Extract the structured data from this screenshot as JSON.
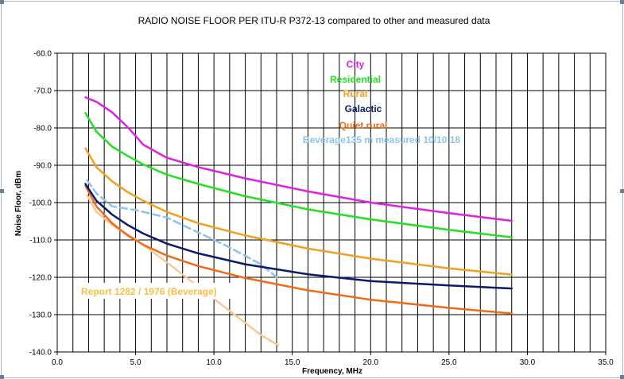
{
  "chart_data": {
    "type": "line",
    "title": "RADIO NOISE FLOOR PER ITU-R P372-13 compared to other and measured data",
    "xlabel": "Frequency, MHz",
    "ylabel": "Noise Floor, dBm",
    "xlim": [
      0,
      35
    ],
    "ylim": [
      -140,
      -60
    ],
    "x_ticks": [
      "0.0",
      "5.0",
      "10.0",
      "15.0",
      "20.0",
      "25.0",
      "30.0",
      "35.0"
    ],
    "y_ticks": [
      "-60.0",
      "-70.0",
      "-80.0",
      "-90.0",
      "-100.0",
      "-110.0",
      "-120.0",
      "-130.0",
      "-140.0"
    ],
    "grid": {
      "vertical_every": 1,
      "horizontal_every": 10
    },
    "series": [
      {
        "name": "City",
        "color": "#e020e0",
        "dash": false,
        "x": [
          1.8,
          2.5,
          3.5,
          4.5,
          5.5,
          7,
          9,
          12,
          16,
          20,
          25,
          29
        ],
        "y": [
          -71.8,
          -73,
          -75.8,
          -79.8,
          -84.5,
          -88,
          -90.5,
          -93.5,
          -97,
          -100,
          -102.8,
          -104.9
        ]
      },
      {
        "name": "Residential",
        "color": "#22e022",
        "dash": false,
        "x": [
          1.8,
          2.5,
          3.5,
          4.5,
          5.5,
          7,
          9,
          12,
          16,
          20,
          25,
          29
        ],
        "y": [
          -76,
          -81,
          -85,
          -87.5,
          -89.8,
          -92.5,
          -95,
          -98.3,
          -101.8,
          -104.5,
          -107.3,
          -109.3
        ]
      },
      {
        "name": "Rural",
        "color": "#f0a020",
        "dash": false,
        "x": [
          1.8,
          2.5,
          3.5,
          4.5,
          5.5,
          7,
          9,
          12,
          16,
          20,
          25,
          29
        ],
        "y": [
          -85.5,
          -90.5,
          -94.3,
          -97.2,
          -99.5,
          -102.5,
          -105.5,
          -108.8,
          -112.3,
          -115,
          -117.6,
          -119.3
        ]
      },
      {
        "name": "Galactic",
        "color": "#0a1a70",
        "dash": false,
        "x": [
          1.8,
          2.5,
          3.5,
          4.5,
          5.5,
          7,
          9,
          12,
          16,
          20,
          25,
          29
        ],
        "y": [
          -95,
          -99.5,
          -103.2,
          -106,
          -108.3,
          -111,
          -113.6,
          -116.5,
          -119.2,
          -121,
          -122.2,
          -123
        ]
      },
      {
        "name": "Quiet rural",
        "color": "#f06a1a",
        "dash": false,
        "x": [
          1.8,
          2.5,
          3.5,
          4.5,
          5.5,
          7,
          9,
          12,
          16,
          20,
          25,
          29
        ],
        "y": [
          -95.5,
          -101,
          -105.5,
          -108.8,
          -111.3,
          -114.2,
          -117,
          -120.2,
          -123.5,
          -126,
          -128.2,
          -129.7
        ]
      },
      {
        "name": "Beverage135 m measured 10/10 18",
        "color": "#8cc4e8",
        "dash": true,
        "x": [
          1.9,
          2.5,
          3.5,
          5,
          7,
          9,
          11,
          13,
          14
        ],
        "y": [
          -94,
          -97.5,
          -101,
          -102,
          -104,
          -108,
          -112,
          -116.5,
          -120
        ]
      },
      {
        "name": "Report 1282 / 1976 (Beverage)",
        "color": "#f8c896",
        "dash": false,
        "x": [
          1.9,
          2.5,
          3.5,
          5,
          7,
          9,
          11,
          13,
          14.1
        ],
        "y": [
          -98,
          -102.5,
          -106,
          -109.8,
          -116,
          -122.5,
          -129,
          -135.5,
          -138.2
        ]
      }
    ],
    "legend_placement": "top-center (stacked labels)",
    "annotation": "Report 1282 / 1976 (Beverage)"
  }
}
